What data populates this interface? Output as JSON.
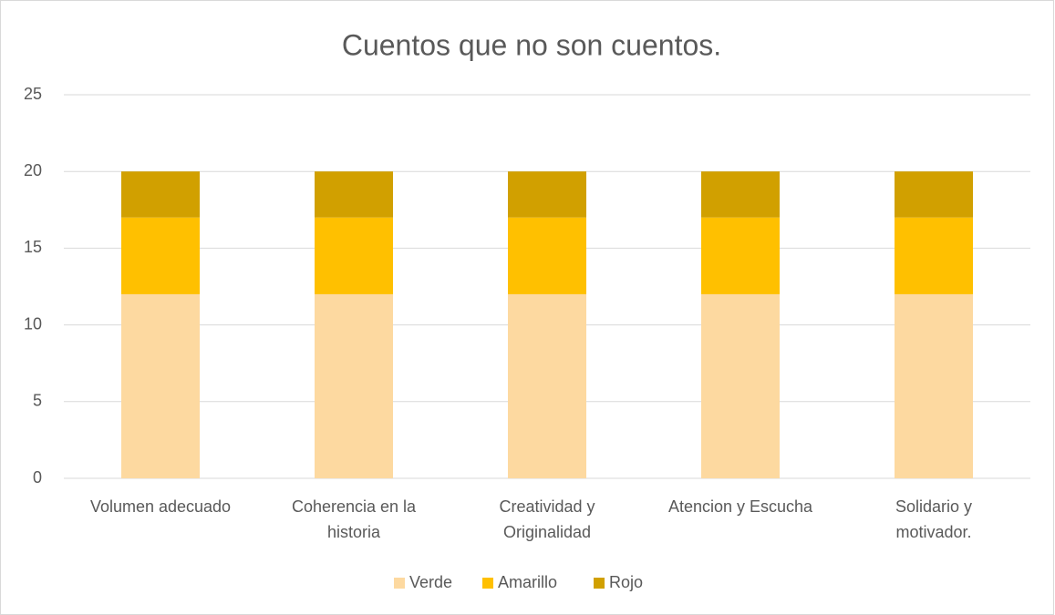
{
  "chart_data": {
    "type": "stacked_bar",
    "title": "Cuentos que no son cuentos.",
    "categories": [
      "Volumen adecuado",
      "Coherencia en la historia",
      "Creatividad y Originalidad",
      "Atencion y Escucha",
      "Solidario y motivador."
    ],
    "series": [
      {
        "name": "Verde",
        "color": "#FDD9A0",
        "values": [
          12,
          12,
          12,
          12,
          12
        ]
      },
      {
        "name": "Amarillo",
        "color": "#FFC000",
        "values": [
          5,
          5,
          5,
          5,
          5
        ]
      },
      {
        "name": "Rojo",
        "color": "#D1A000",
        "values": [
          3,
          3,
          3,
          3,
          3
        ]
      }
    ],
    "ylim": [
      0,
      25
    ],
    "yticks": [
      0,
      5,
      10,
      15,
      20,
      25
    ],
    "grid": true,
    "legend": "bottom"
  }
}
